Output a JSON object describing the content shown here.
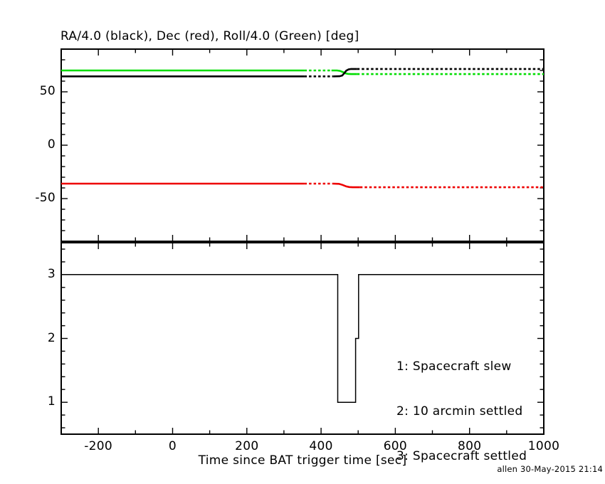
{
  "page": {
    "credit": "allen 30-May-2015 21:14"
  },
  "chart_data": {
    "type": "line",
    "title": "RA/4.0 (black), Dec (red), Roll/4.0 (Green) [deg]",
    "xlabel": "Time since BAT trigger time [sec]",
    "x_range": [
      -300,
      1000
    ],
    "x_tick_step_major": 200,
    "x_tick_step_minor": 100,
    "x_tick_labels": [
      -200,
      0,
      200,
      400,
      600,
      800,
      1000
    ],
    "grid": false,
    "panels": [
      {
        "id": "attitude",
        "ylim": [
          -90,
          90
        ],
        "y_major_ticks": [
          50,
          0,
          -50
        ],
        "y_minor_step": 10,
        "series": [
          {
            "name": "Dec (red)",
            "color": "#ee0000",
            "width": 2.6,
            "segments": [
              {
                "style": "solid",
                "points": [
                  [
                    -300,
                    -36
                  ],
                  [
                    355,
                    -36
                  ]
                ]
              },
              {
                "style": "dashed",
                "points": [
                  [
                    355,
                    -36
                  ],
                  [
                    432,
                    -36
                  ]
                ]
              },
              {
                "style": "solid",
                "points": [
                  [
                    432,
                    -36
                  ],
                  [
                    448,
                    -36.2
                  ],
                  [
                    458,
                    -37.2
                  ],
                  [
                    468,
                    -38.6
                  ],
                  [
                    476,
                    -39.2
                  ],
                  [
                    485,
                    -39.4
                  ],
                  [
                    505,
                    -39.4
                  ]
                ]
              },
              {
                "style": "dashed",
                "points": [
                  [
                    505,
                    -39.4
                  ],
                  [
                    1000,
                    -39.4
                  ]
                ]
              }
            ]
          },
          {
            "name": "Roll/4.0 (Green)",
            "color": "#00dd00",
            "width": 2.6,
            "segments": [
              {
                "style": "solid",
                "points": [
                  [
                    -300,
                    70
                  ],
                  [
                    355,
                    70
                  ]
                ]
              },
              {
                "style": "dashed",
                "points": [
                  [
                    355,
                    70
                  ],
                  [
                    428,
                    70
                  ]
                ]
              },
              {
                "style": "solid",
                "points": [
                  [
                    428,
                    70
                  ],
                  [
                    443,
                    70
                  ],
                  [
                    451,
                    69.6
                  ],
                  [
                    459,
                    68.5
                  ],
                  [
                    466,
                    67.3
                  ],
                  [
                    473,
                    66.8
                  ],
                  [
                    481,
                    66.6
                  ],
                  [
                    497,
                    66.6
                  ]
                ]
              },
              {
                "style": "dashed",
                "points": [
                  [
                    497,
                    66.6
                  ],
                  [
                    1000,
                    66.6
                  ]
                ]
              }
            ]
          },
          {
            "name": "RA/4.0 (black)",
            "color": "#000000",
            "width": 2.6,
            "segments": [
              {
                "style": "solid",
                "points": [
                  [
                    -300,
                    64.5
                  ],
                  [
                    355,
                    64.5
                  ]
                ]
              },
              {
                "style": "dashed",
                "points": [
                  [
                    355,
                    64.5
                  ],
                  [
                    434,
                    64.5
                  ]
                ]
              },
              {
                "style": "solid",
                "points": [
                  [
                    434,
                    64.5
                  ],
                  [
                    450,
                    64.6
                  ],
                  [
                    457,
                    65.3
                  ],
                  [
                    462,
                    67.2
                  ],
                  [
                    468,
                    69.8
                  ],
                  [
                    474,
                    71.0
                  ],
                  [
                    481,
                    71.4
                  ],
                  [
                    497,
                    71.4
                  ]
                ]
              },
              {
                "style": "dashed",
                "points": [
                  [
                    497,
                    71.4
                  ],
                  [
                    1000,
                    71.4
                  ]
                ]
              }
            ]
          }
        ]
      },
      {
        "id": "settled-state",
        "ylim": [
          0.5,
          3.5
        ],
        "y_major_ticks": [
          3,
          2,
          1
        ],
        "y_minor_step": 0.2,
        "series": [
          {
            "name": "settling state",
            "color": "#000000",
            "width": 1.5,
            "segments": [
              {
                "style": "solid",
                "points": [
                  [
                    -300,
                    3
                  ],
                  [
                    445,
                    3
                  ],
                  [
                    445,
                    1
                  ],
                  [
                    493,
                    1
                  ],
                  [
                    493,
                    2
                  ],
                  [
                    501,
                    2
                  ],
                  [
                    501,
                    3
                  ],
                  [
                    1000,
                    3
                  ]
                ]
              }
            ]
          }
        ],
        "legend": [
          "1: Spacecraft slew",
          "2: 10 arcmin settled",
          "3: Spacecraft settled"
        ]
      }
    ]
  }
}
